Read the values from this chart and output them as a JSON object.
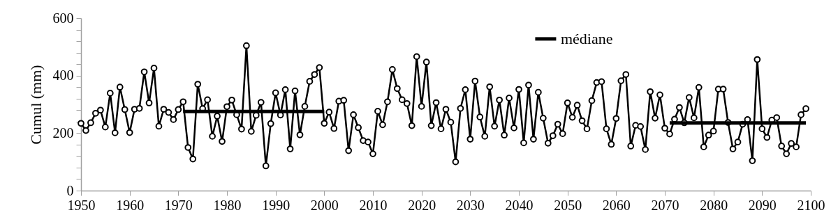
{
  "chart_data": {
    "type": "line",
    "ylabel": "Cumul (mm)",
    "x": [
      1950,
      1951,
      1952,
      1953,
      1954,
      1955,
      1956,
      1957,
      1958,
      1959,
      1960,
      1961,
      1962,
      1963,
      1964,
      1965,
      1966,
      1967,
      1968,
      1969,
      1970,
      1971,
      1972,
      1973,
      1974,
      1975,
      1976,
      1977,
      1978,
      1979,
      1980,
      1981,
      1982,
      1983,
      1984,
      1985,
      1986,
      1987,
      1988,
      1989,
      1990,
      1991,
      1992,
      1993,
      1994,
      1995,
      1996,
      1997,
      1998,
      1999,
      2000,
      2001,
      2002,
      2003,
      2004,
      2005,
      2006,
      2007,
      2008,
      2009,
      2010,
      2011,
      2012,
      2013,
      2014,
      2015,
      2016,
      2017,
      2018,
      2019,
      2020,
      2021,
      2022,
      2023,
      2024,
      2025,
      2026,
      2027,
      2028,
      2029,
      2030,
      2031,
      2032,
      2033,
      2034,
      2035,
      2036,
      2037,
      2038,
      2039,
      2040,
      2041,
      2042,
      2043,
      2044,
      2045,
      2046,
      2047,
      2048,
      2049,
      2050,
      2051,
      2052,
      2053,
      2054,
      2055,
      2056,
      2057,
      2058,
      2059,
      2060,
      2061,
      2062,
      2063,
      2064,
      2065,
      2066,
      2067,
      2068,
      2069,
      2070,
      2071,
      2072,
      2073,
      2074,
      2075,
      2076,
      2077,
      2078,
      2079,
      2080,
      2081,
      2082,
      2083,
      2084,
      2085,
      2086,
      2087,
      2088,
      2089,
      2090,
      2091,
      2092,
      2093,
      2094,
      2095,
      2096,
      2097,
      2098,
      2099
    ],
    "series": [
      {
        "color": "#000000",
        "marker": "circle",
        "values": [
          234,
          209,
          236,
          269,
          280,
          221,
          339,
          201,
          360,
          282,
          202,
          283,
          286,
          413,
          305,
          426,
          224,
          283,
          272,
          247,
          282,
          309,
          150,
          110,
          370,
          285,
          316,
          189,
          259,
          171,
          292,
          315,
          264,
          214,
          504,
          206,
          262,
          307,
          86,
          233,
          340,
          263,
          351,
          145,
          347,
          194,
          293,
          380,
          404,
          428,
          234,
          273,
          216,
          311,
          314,
          139,
          264,
          219,
          174,
          169,
          128,
          276,
          229,
          309,
          421,
          355,
          316,
          303,
          226,
          466,
          293,
          447,
          226,
          306,
          215,
          283,
          238,
          100,
          286,
          351,
          179,
          381,
          256,
          189,
          361,
          224,
          315,
          193,
          322,
          218,
          352,
          166,
          367,
          179,
          342,
          252,
          165,
          191,
          231,
          198,
          305,
          255,
          297,
          243,
          215,
          313,
          376,
          379,
          215,
          161,
          251,
          382,
          404,
          155,
          227,
          223,
          143,
          344,
          252,
          333,
          217,
          197,
          248,
          289,
          236,
          324,
          253,
          359,
          152,
          193,
          207,
          353,
          353,
          237,
          145,
          169,
          231,
          247,
          104,
          456,
          215,
          185,
          245,
          254,
          155,
          128,
          164,
          152,
          264,
          285
        ]
      },
      {
        "name": "médiane",
        "color": "#000000",
        "marker": "none",
        "x": [
          1971,
          2000,
          2035,
          2071,
          2099
        ],
        "values": [
          275,
          275,
          null,
          235,
          235
        ]
      }
    ],
    "xlim": [
      1950,
      2100
    ],
    "xticks": [
      1950,
      1960,
      1970,
      1980,
      1990,
      2000,
      2010,
      2020,
      2030,
      2040,
      2050,
      2060,
      2070,
      2080,
      2090,
      2100
    ],
    "ylim": [
      0,
      600
    ],
    "yticks": [
      0,
      {
        "value": 40,
        "label": null
      },
      {
        "value": 80,
        "label": null
      },
      {
        "value": 120,
        "label": null
      },
      {
        "value": 160,
        "label": null
      },
      200,
      {
        "value": 240,
        "label": null
      },
      {
        "value": 280,
        "label": null
      },
      {
        "value": 320,
        "label": null
      },
      {
        "value": 360,
        "label": null
      },
      400,
      {
        "value": 440,
        "label": null
      },
      {
        "value": 480,
        "label": null
      },
      {
        "value": 520,
        "label": null
      },
      {
        "value": 560,
        "label": null
      },
      600
    ],
    "grid": false,
    "legend": "top",
    "line_style": "solid"
  }
}
